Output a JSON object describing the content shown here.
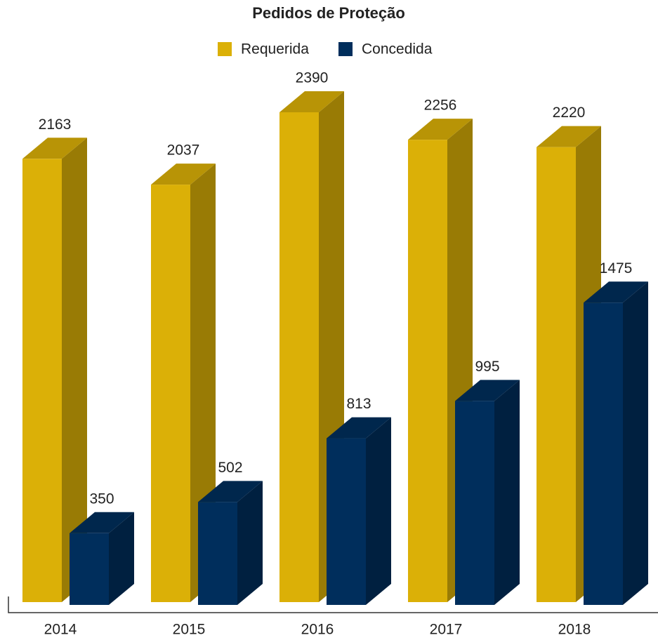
{
  "chart_data": {
    "type": "bar3d",
    "title": "Pedidos de Proteção",
    "categories": [
      "2014",
      "2015",
      "2016",
      "2017",
      "2018"
    ],
    "series": [
      {
        "name": "Requerida",
        "color": "#dbb007",
        "values": [
          2163,
          2037,
          2390,
          2256,
          2220
        ]
      },
      {
        "name": "Concedida",
        "color": "#002e5c",
        "values": [
          350,
          502,
          813,
          995,
          1475
        ]
      }
    ]
  }
}
